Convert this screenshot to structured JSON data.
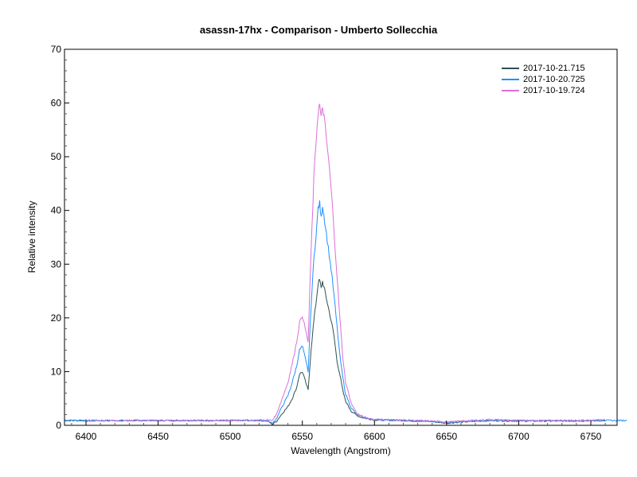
{
  "chart_data": {
    "type": "line",
    "title": "asassn-17hx - Comparison - Umberto Sollecchia",
    "xlabel": "Wavelength (Angstrom)",
    "ylabel": "Relative intensity",
    "xlim": [
      6385,
      6775
    ],
    "ylim": [
      0,
      70
    ],
    "xticks": [
      6400,
      6450,
      6500,
      6550,
      6600,
      6650,
      6700,
      6750
    ],
    "yticks": [
      0,
      10,
      20,
      30,
      40,
      50,
      60,
      70
    ],
    "grid": false,
    "legend_position": "upper right",
    "series": [
      {
        "name": "2017-10-21.715",
        "color": "#2f4f4f",
        "x": [
          6385,
          6450,
          6500,
          6520,
          6526,
          6529,
          6532,
          6536,
          6540,
          6543,
          6546,
          6548,
          6550,
          6552,
          6554,
          6556,
          6558,
          6560,
          6561,
          6562,
          6563,
          6564,
          6565,
          6566,
          6568,
          6570,
          6572,
          6574,
          6576,
          6578,
          6580,
          6584,
          6588,
          6592,
          6596,
          6600,
          6620,
          6640,
          6650,
          6660,
          6680,
          6700,
          6730,
          6760
        ],
        "values": [
          0.9,
          0.9,
          0.9,
          0.9,
          0.8,
          0.2,
          0.7,
          2.2,
          3.5,
          5.0,
          7.0,
          9.5,
          10.0,
          8.3,
          6.5,
          14.0,
          19.5,
          24.0,
          26.5,
          27.0,
          25.5,
          26.8,
          25.6,
          24.5,
          22.0,
          19.5,
          16.5,
          12.0,
          9.5,
          6.5,
          4.5,
          2.6,
          1.8,
          1.4,
          1.2,
          1.0,
          0.9,
          0.7,
          0.4,
          0.6,
          0.9,
          0.8,
          0.8,
          0.9
        ]
      },
      {
        "name": "2017-10-20.725",
        "color": "#1e90ff",
        "x": [
          6385,
          6450,
          6500,
          6520,
          6526,
          6529,
          6532,
          6536,
          6540,
          6543,
          6546,
          6548,
          6550,
          6552,
          6554,
          6556,
          6558,
          6560,
          6561,
          6562,
          6563,
          6564,
          6565,
          6566,
          6568,
          6570,
          6572,
          6574,
          6576,
          6578,
          6580,
          6584,
          6588,
          6592,
          6596,
          6600,
          6620,
          6640,
          6650,
          6660,
          6680,
          6700,
          6730,
          6775
        ],
        "values": [
          0.9,
          0.9,
          0.9,
          0.9,
          0.8,
          0.4,
          1.2,
          3.5,
          5.5,
          8.0,
          11.0,
          14.0,
          14.7,
          12.5,
          10.0,
          22.0,
          31.0,
          37.0,
          40.5,
          41.3,
          38.5,
          41.0,
          39.0,
          37.0,
          33.0,
          29.0,
          24.0,
          18.5,
          13.0,
          9.0,
          5.8,
          3.2,
          2.0,
          1.5,
          1.2,
          1.1,
          0.9,
          0.7,
          0.6,
          0.7,
          0.9,
          0.9,
          0.9,
          0.9
        ]
      },
      {
        "name": "2017-10-19.724",
        "color": "#da70d6",
        "x": [
          6400,
          6450,
          6500,
          6520,
          6526,
          6529,
          6532,
          6536,
          6540,
          6543,
          6546,
          6548,
          6550,
          6552,
          6554,
          6556,
          6558,
          6560,
          6561,
          6562,
          6563,
          6564,
          6565,
          6566,
          6568,
          6570,
          6572,
          6574,
          6576,
          6578,
          6580,
          6584,
          6588,
          6592,
          6596,
          6600,
          6620,
          6640,
          6650,
          6660,
          6680,
          6700,
          6730,
          6760
        ],
        "values": [
          0.8,
          0.9,
          0.9,
          1.0,
          1.0,
          0.9,
          2.0,
          5.0,
          8.0,
          11.5,
          15.5,
          19.0,
          20.5,
          18.0,
          15.5,
          32.0,
          46.0,
          55.0,
          58.5,
          59.7,
          57.0,
          59.3,
          57.5,
          55.0,
          50.0,
          44.0,
          36.0,
          28.0,
          20.0,
          13.0,
          8.0,
          4.0,
          2.2,
          1.6,
          1.3,
          1.1,
          1.0,
          0.8,
          0.6,
          0.8,
          1.1,
          0.9,
          0.9,
          1.0
        ]
      }
    ]
  }
}
